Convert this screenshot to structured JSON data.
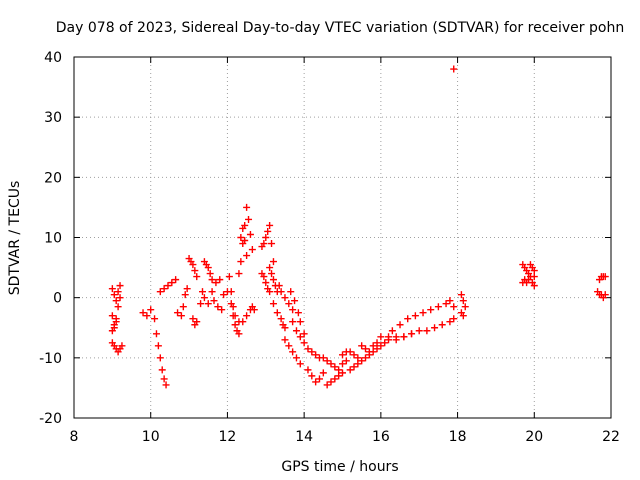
{
  "chart_data": {
    "type": "scatter",
    "title": "Day 078 of 2023, Sidereal Day-to-day VTEC variation (SDTVAR) for receiver pohn",
    "xlabel": "GPS time / hours",
    "ylabel": "SDTVAR / TECUs",
    "xlim": [
      8,
      22
    ],
    "ylim": [
      -20,
      40
    ],
    "xticks": [
      "8",
      "10",
      "12",
      "14",
      "16",
      "18",
      "20",
      "22"
    ],
    "yticks": [
      "-20",
      "-10",
      "0",
      "10",
      "20",
      "30",
      "40"
    ],
    "grid": true,
    "marker": "plus",
    "color": "#ff0000",
    "series": [
      {
        "name": "sdtvar",
        "points": [
          [
            9.0,
            1.5
          ],
          [
            9.05,
            0.5
          ],
          [
            9.1,
            -0.5
          ],
          [
            9.15,
            1.0
          ],
          [
            9.2,
            2.0
          ],
          [
            9.0,
            -3.0
          ],
          [
            9.05,
            -4.5
          ],
          [
            9.1,
            -3.5
          ],
          [
            9.15,
            -1.5
          ],
          [
            9.2,
            0.0
          ],
          [
            9.0,
            -5.5
          ],
          [
            9.05,
            -5.0
          ],
          [
            9.1,
            -4.0
          ],
          [
            9.0,
            -7.5
          ],
          [
            9.05,
            -8.0
          ],
          [
            9.1,
            -8.5
          ],
          [
            9.15,
            -9.0
          ],
          [
            9.2,
            -8.5
          ],
          [
            9.25,
            -8.0
          ],
          [
            9.8,
            -2.5
          ],
          [
            9.9,
            -3.0
          ],
          [
            10.0,
            -2.0
          ],
          [
            10.1,
            -3.5
          ],
          [
            10.15,
            -6.0
          ],
          [
            10.2,
            -8.0
          ],
          [
            10.25,
            -10.0
          ],
          [
            10.3,
            -12.0
          ],
          [
            10.35,
            -13.5
          ],
          [
            10.4,
            -14.5
          ],
          [
            10.25,
            1.0
          ],
          [
            10.35,
            1.5
          ],
          [
            10.45,
            2.0
          ],
          [
            10.55,
            2.5
          ],
          [
            10.65,
            3.0
          ],
          [
            10.7,
            -2.5
          ],
          [
            10.8,
            -3.0
          ],
          [
            10.85,
            -1.5
          ],
          [
            10.9,
            0.5
          ],
          [
            10.95,
            1.5
          ],
          [
            11.0,
            6.5
          ],
          [
            11.05,
            6.0
          ],
          [
            11.1,
            5.5
          ],
          [
            11.15,
            4.5
          ],
          [
            11.2,
            3.5
          ],
          [
            11.1,
            -3.5
          ],
          [
            11.15,
            -4.5
          ],
          [
            11.2,
            -4.0
          ],
          [
            11.3,
            -1.0
          ],
          [
            11.35,
            1.0
          ],
          [
            11.4,
            6.0
          ],
          [
            11.45,
            5.5
          ],
          [
            11.5,
            5.0
          ],
          [
            11.55,
            4.0
          ],
          [
            11.6,
            3.0
          ],
          [
            11.4,
            0.0
          ],
          [
            11.5,
            -1.0
          ],
          [
            11.6,
            1.0
          ],
          [
            11.7,
            2.5
          ],
          [
            11.8,
            3.0
          ],
          [
            11.65,
            -0.5
          ],
          [
            11.75,
            -1.5
          ],
          [
            11.85,
            -2.0
          ],
          [
            11.9,
            0.5
          ],
          [
            12.0,
            1.0
          ],
          [
            12.05,
            3.5
          ],
          [
            12.1,
            1.0
          ],
          [
            12.15,
            -1.5
          ],
          [
            12.2,
            -3.0
          ],
          [
            12.3,
            -4.0
          ],
          [
            12.1,
            -1.0
          ],
          [
            12.15,
            -3.0
          ],
          [
            12.2,
            -4.5
          ],
          [
            12.25,
            -5.5
          ],
          [
            12.3,
            -6.0
          ],
          [
            12.3,
            4.0
          ],
          [
            12.35,
            6.0
          ],
          [
            12.4,
            9.0
          ],
          [
            12.45,
            12.0
          ],
          [
            12.5,
            15.0
          ],
          [
            12.55,
            13.0
          ],
          [
            12.6,
            10.5
          ],
          [
            12.65,
            8.0
          ],
          [
            12.35,
            10.0
          ],
          [
            12.4,
            11.5
          ],
          [
            12.45,
            9.5
          ],
          [
            12.5,
            7.0
          ],
          [
            12.4,
            -4.0
          ],
          [
            12.5,
            -3.0
          ],
          [
            12.6,
            -2.0
          ],
          [
            12.65,
            -1.5
          ],
          [
            12.7,
            -2.0
          ],
          [
            12.9,
            8.5
          ],
          [
            12.95,
            9.0
          ],
          [
            13.0,
            10.0
          ],
          [
            13.05,
            11.0
          ],
          [
            13.1,
            12.0
          ],
          [
            13.15,
            9.0
          ],
          [
            13.2,
            6.0
          ],
          [
            12.9,
            4.0
          ],
          [
            12.95,
            3.5
          ],
          [
            13.0,
            2.5
          ],
          [
            13.05,
            1.5
          ],
          [
            13.1,
            1.0
          ],
          [
            13.1,
            5.0
          ],
          [
            13.15,
            4.0
          ],
          [
            13.2,
            3.0
          ],
          [
            13.25,
            2.0
          ],
          [
            13.3,
            1.0
          ],
          [
            13.2,
            -1.0
          ],
          [
            13.3,
            -2.5
          ],
          [
            13.4,
            -3.5
          ],
          [
            13.45,
            -4.5
          ],
          [
            13.5,
            -5.0
          ],
          [
            13.35,
            2.0
          ],
          [
            13.4,
            1.0
          ],
          [
            13.5,
            0.0
          ],
          [
            13.6,
            -1.0
          ],
          [
            13.7,
            -2.0
          ],
          [
            13.5,
            -7.0
          ],
          [
            13.6,
            -8.0
          ],
          [
            13.7,
            -9.0
          ],
          [
            13.8,
            -10.0
          ],
          [
            13.9,
            -11.0
          ],
          [
            13.7,
            -4.0
          ],
          [
            13.8,
            -5.5
          ],
          [
            13.9,
            -6.5
          ],
          [
            14.0,
            -7.5
          ],
          [
            14.1,
            -8.5
          ],
          [
            13.65,
            1.0
          ],
          [
            13.75,
            -0.5
          ],
          [
            13.85,
            -2.5
          ],
          [
            13.9,
            -4.0
          ],
          [
            14.0,
            -6.0
          ],
          [
            14.1,
            -12.0
          ],
          [
            14.2,
            -13.0
          ],
          [
            14.3,
            -14.0
          ],
          [
            14.4,
            -13.5
          ],
          [
            14.5,
            -12.5
          ],
          [
            14.2,
            -9.0
          ],
          [
            14.3,
            -9.5
          ],
          [
            14.4,
            -10.0
          ],
          [
            14.5,
            -10.0
          ],
          [
            14.6,
            -10.5
          ],
          [
            14.6,
            -14.5
          ],
          [
            14.7,
            -14.0
          ],
          [
            14.8,
            -13.5
          ],
          [
            14.9,
            -13.0
          ],
          [
            15.0,
            -12.5
          ],
          [
            14.7,
            -11.0
          ],
          [
            14.8,
            -11.5
          ],
          [
            14.9,
            -12.0
          ],
          [
            15.0,
            -11.0
          ],
          [
            15.1,
            -10.5
          ],
          [
            15.0,
            -9.5
          ],
          [
            15.1,
            -9.0
          ],
          [
            15.2,
            -9.0
          ],
          [
            15.3,
            -9.5
          ],
          [
            15.4,
            -10.0
          ],
          [
            15.2,
            -12.0
          ],
          [
            15.3,
            -11.5
          ],
          [
            15.4,
            -11.0
          ],
          [
            15.5,
            -10.5
          ],
          [
            15.6,
            -10.0
          ],
          [
            15.5,
            -8.0
          ],
          [
            15.6,
            -8.5
          ],
          [
            15.7,
            -9.0
          ],
          [
            15.8,
            -8.0
          ],
          [
            15.9,
            -7.5
          ],
          [
            15.7,
            -9.5
          ],
          [
            15.8,
            -9.0
          ],
          [
            15.9,
            -8.5
          ],
          [
            16.0,
            -8.0
          ],
          [
            16.1,
            -7.5
          ],
          [
            16.0,
            -6.5
          ],
          [
            16.2,
            -6.5
          ],
          [
            16.4,
            -6.5
          ],
          [
            16.6,
            -6.5
          ],
          [
            16.8,
            -6.0
          ],
          [
            16.2,
            -7.0
          ],
          [
            16.4,
            -7.0
          ],
          [
            16.6,
            -6.5
          ],
          [
            16.8,
            -6.0
          ],
          [
            17.0,
            -5.5
          ],
          [
            16.3,
            -5.5
          ],
          [
            16.5,
            -4.5
          ],
          [
            16.7,
            -3.5
          ],
          [
            16.9,
            -3.0
          ],
          [
            17.1,
            -2.5
          ],
          [
            17.2,
            -5.5
          ],
          [
            17.4,
            -5.0
          ],
          [
            17.6,
            -4.5
          ],
          [
            17.8,
            -4.0
          ],
          [
            17.9,
            -3.5
          ],
          [
            17.3,
            -2.0
          ],
          [
            17.5,
            -1.5
          ],
          [
            17.7,
            -1.0
          ],
          [
            17.8,
            -0.5
          ],
          [
            17.9,
            -1.5
          ],
          [
            17.9,
            38.0
          ],
          [
            18.1,
            0.5
          ],
          [
            18.15,
            -0.5
          ],
          [
            18.2,
            -1.5
          ],
          [
            18.1,
            -2.5
          ],
          [
            18.15,
            -3.0
          ],
          [
            19.7,
            5.5
          ],
          [
            19.75,
            5.0
          ],
          [
            19.8,
            4.5
          ],
          [
            19.85,
            4.0
          ],
          [
            19.9,
            5.5
          ],
          [
            19.7,
            2.5
          ],
          [
            19.75,
            3.0
          ],
          [
            19.8,
            2.5
          ],
          [
            19.85,
            3.0
          ],
          [
            19.9,
            3.5
          ],
          [
            19.95,
            5.0
          ],
          [
            20.0,
            4.5
          ],
          [
            20.0,
            3.5
          ],
          [
            19.95,
            2.5
          ],
          [
            20.0,
            2.0
          ],
          [
            21.7,
            3.0
          ],
          [
            21.75,
            3.5
          ],
          [
            21.8,
            3.5
          ],
          [
            21.85,
            3.5
          ],
          [
            21.65,
            1.0
          ],
          [
            21.7,
            0.5
          ],
          [
            21.75,
            0.5
          ],
          [
            21.8,
            0.0
          ],
          [
            21.85,
            0.5
          ]
        ]
      }
    ]
  }
}
